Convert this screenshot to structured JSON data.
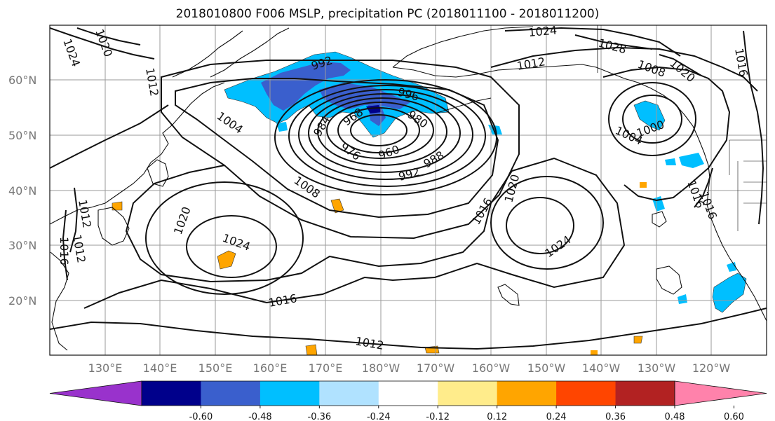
{
  "title": "2018010800 F006 MSLP, precipitation PC (2018011100 - 2018011200)",
  "map": {
    "latitude_labels": [
      "60°N",
      "50°N",
      "40°N",
      "30°N",
      "20°N"
    ],
    "longitude_labels": [
      "130°E",
      "140°E",
      "150°E",
      "160°E",
      "170°E",
      "180°W",
      "170°W",
      "160°W",
      "150°W",
      "140°W",
      "130°W",
      "120°W"
    ],
    "latitudes": [
      60,
      50,
      40,
      30,
      20
    ],
    "longitudes_deg": [
      130,
      140,
      150,
      160,
      170,
      180,
      190,
      200,
      210,
      220,
      230,
      240
    ],
    "isobars": [
      {
        "label": "992"
      },
      {
        "label": "996"
      },
      {
        "label": "968"
      },
      {
        "label": "980"
      },
      {
        "label": "984"
      },
      {
        "label": "976"
      },
      {
        "label": "960"
      },
      {
        "label": "992"
      },
      {
        "label": "988"
      },
      {
        "label": "1004"
      },
      {
        "label": "1008"
      },
      {
        "label": "1020"
      },
      {
        "label": "1024"
      },
      {
        "label": "1016"
      },
      {
        "label": "1016"
      },
      {
        "label": "1012"
      },
      {
        "label": "1024"
      },
      {
        "label": "1020"
      },
      {
        "label": "1016"
      },
      {
        "label": "1008"
      },
      {
        "label": "1004"
      },
      {
        "label": "1000"
      },
      {
        "label": "1020"
      },
      {
        "label": "1016"
      },
      {
        "label": "1016"
      },
      {
        "label": "1024"
      },
      {
        "label": "1028"
      },
      {
        "label": "1012"
      },
      {
        "label": "1012"
      },
      {
        "label": "1024"
      },
      {
        "label": "1020"
      },
      {
        "label": "1012"
      },
      {
        "label": "1016"
      },
      {
        "label": "1012"
      }
    ]
  },
  "colorbar": {
    "colors": [
      "#9932cc",
      "#00008b",
      "#3a5fcd",
      "#00bfff",
      "#b0e2ff",
      "#ffffff",
      "#ffec8b",
      "#ffa500",
      "#ff4500",
      "#b22222",
      "#ff82ab"
    ],
    "tick_labels": [
      "-0.60",
      "-0.48",
      "-0.36",
      "-0.24",
      "-0.12",
      "0.12",
      "0.24",
      "0.36",
      "0.48",
      "0.60"
    ]
  }
}
